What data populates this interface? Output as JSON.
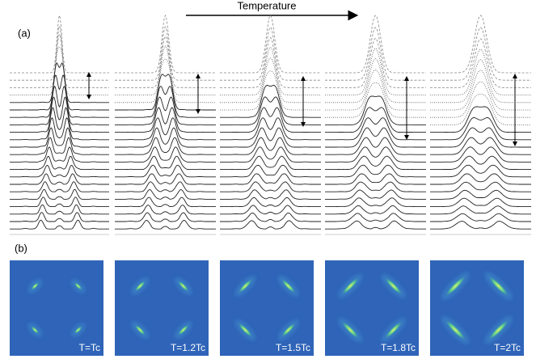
{
  "arrow_label": "Temperature",
  "panel_a": {
    "label": "(a)"
  },
  "panel_b": {
    "label": "(b)",
    "panels": [
      {
        "label": "T=Tc"
      },
      {
        "label": "T=1.2Tc"
      },
      {
        "label": "T=1.5Tc"
      },
      {
        "label": "T=1.8Tc"
      },
      {
        "label": "T=2Tc"
      }
    ]
  }
}
